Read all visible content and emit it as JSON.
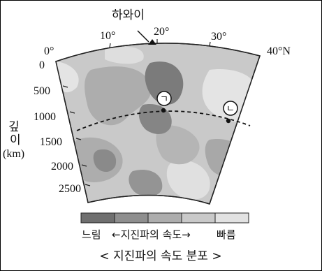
{
  "place_label": "하와이",
  "longitude_labels": [
    "0°",
    "10°",
    "20°",
    "30°",
    "40°N"
  ],
  "depth_labels": [
    "0",
    "500",
    "1000",
    "1500",
    "2000",
    "2500"
  ],
  "axis_label_top": "깊",
  "axis_label_bottom": "이",
  "axis_unit": "(km)",
  "point_a": "ㄱ",
  "point_b": "ㄴ",
  "legend_slow": "느림",
  "legend_middle": "←지진파의 속도→",
  "legend_fast": "빠름",
  "legend_colors": [
    "#6f6f6f",
    "#8e8e8e",
    "#adadad",
    "#c9c9c9",
    "#e2e2e2"
  ],
  "caption": "< 지진파의 속도 분포 >"
}
